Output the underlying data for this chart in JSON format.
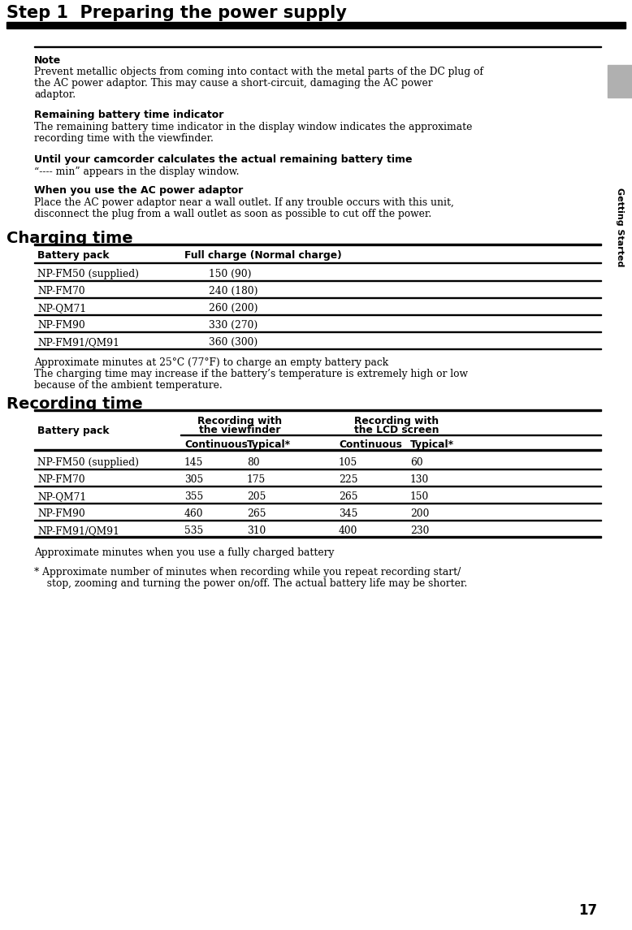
{
  "page_number": "17",
  "sidebar_text": "Getting Started",
  "title": "Step 1  Preparing the power supply",
  "note_label": "Note",
  "note_lines": [
    "Prevent metallic objects from coming into contact with the metal parts of the DC plug of",
    "the AC power adaptor. This may cause a short-circuit, damaging the AC power",
    "adaptor."
  ],
  "section1_title": "Remaining battery time indicator",
  "section1_lines": [
    "The remaining battery time indicator in the display window indicates the approximate",
    "recording time with the viewfinder."
  ],
  "section2_title": "Until your camcorder calculates the actual remaining battery time",
  "section2_text": "“---- min” appears in the display window.",
  "section3_title": "When you use the AC power adaptor",
  "section3_lines": [
    "Place the AC power adaptor near a wall outlet. If any trouble occurs with this unit,",
    "disconnect the plug from a wall outlet as soon as possible to cut off the power."
  ],
  "charging_title": "Charging time",
  "charging_col1_header": "Battery pack",
  "charging_col2_header": "Full charge (Normal charge)",
  "charging_rows": [
    [
      "NP-FM50 (supplied)",
      "150 (90)"
    ],
    [
      "NP-FM70",
      "240 (180)"
    ],
    [
      "NP-QM71",
      "260 (200)"
    ],
    [
      "NP-FM90",
      "330 (270)"
    ],
    [
      "NP-FM91/QM91",
      "360 (300)"
    ]
  ],
  "charging_note1": "Approximate minutes at 25°C (77°F) to charge an empty battery pack",
  "charging_note2a": "The charging time may increase if the battery’s temperature is extremely high or low",
  "charging_note2b": "because of the ambient temperature.",
  "recording_title": "Recording time",
  "recording_rows": [
    [
      "NP-FM50 (supplied)",
      "145",
      "80",
      "105",
      "60"
    ],
    [
      "NP-FM70",
      "305",
      "175",
      "225",
      "130"
    ],
    [
      "NP-QM71",
      "355",
      "205",
      "265",
      "150"
    ],
    [
      "NP-FM90",
      "460",
      "265",
      "345",
      "200"
    ],
    [
      "NP-FM91/QM91",
      "535",
      "310",
      "400",
      "230"
    ]
  ],
  "recording_note1": "Approximate minutes when you use a fully charged battery",
  "recording_note2a": "* Approximate number of minutes when recording while you repeat recording start/",
  "recording_note2b": "  stop, zooming and turning the power on/off. The actual battery life may be shorter.",
  "bg_color": "#ffffff",
  "text_color": "#000000"
}
